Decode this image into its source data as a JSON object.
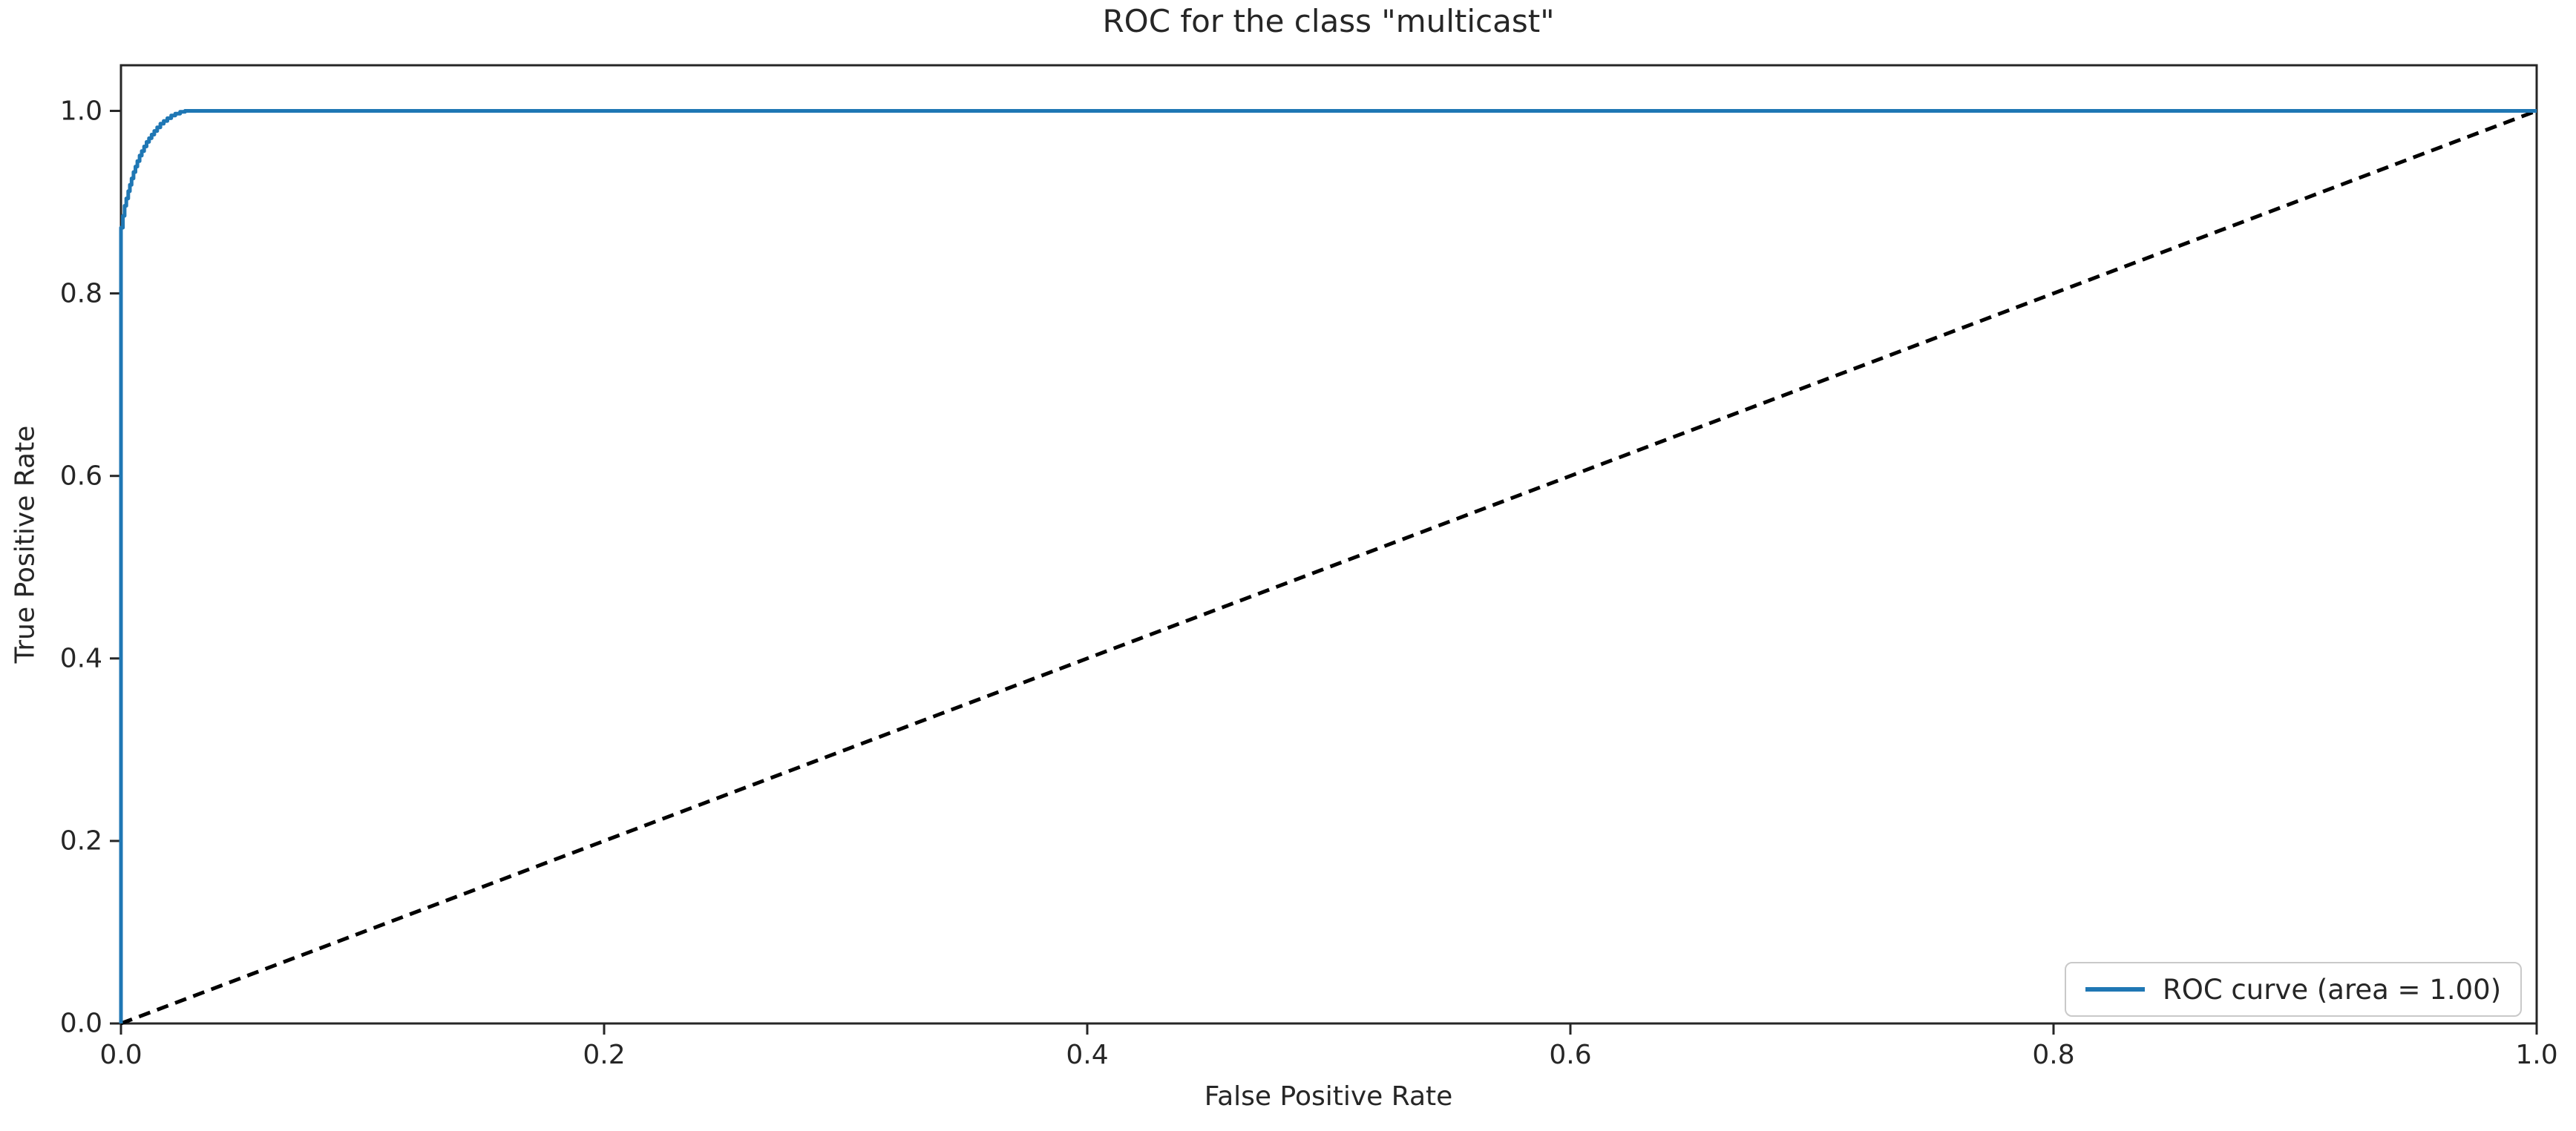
{
  "chart_data": {
    "type": "line",
    "title": "ROC for the class \"multicast\"",
    "xlabel": "False Positive Rate",
    "ylabel": "True Positive Rate",
    "xlim": [
      0.0,
      1.0
    ],
    "ylim": [
      0.0,
      1.05
    ],
    "xticks": [
      0.0,
      0.2,
      0.4,
      0.6,
      0.8,
      1.0
    ],
    "yticks": [
      0.0,
      0.2,
      0.4,
      0.6,
      0.8,
      1.0
    ],
    "grid": false,
    "legend_position": "lower right",
    "auc": "1.00",
    "colors": {
      "roc_curve": "#1f77b4",
      "chance_diagonal": "#000000",
      "spines": "#262626",
      "legend_border": "#c9c9c9",
      "text": "#262626"
    },
    "series": [
      {
        "name": "ROC curve (area = 1.00)",
        "color": "#1f77b4",
        "style": "solid",
        "step": true,
        "points": [
          [
            0.0,
            0.0
          ],
          [
            0.0,
            0.855
          ],
          [
            0.0008,
            0.872
          ],
          [
            0.0015,
            0.885
          ],
          [
            0.0022,
            0.896
          ],
          [
            0.003,
            0.904
          ],
          [
            0.0037,
            0.912
          ],
          [
            0.0044,
            0.919
          ],
          [
            0.0052,
            0.926
          ],
          [
            0.006,
            0.933
          ],
          [
            0.0068,
            0.939
          ],
          [
            0.0077,
            0.945
          ],
          [
            0.0086,
            0.951
          ],
          [
            0.0096,
            0.956
          ],
          [
            0.0106,
            0.961
          ],
          [
            0.0116,
            0.966
          ],
          [
            0.0127,
            0.97
          ],
          [
            0.0138,
            0.974
          ],
          [
            0.015,
            0.978
          ],
          [
            0.0163,
            0.982
          ],
          [
            0.0177,
            0.986
          ],
          [
            0.0192,
            0.989
          ],
          [
            0.0208,
            0.992
          ],
          [
            0.0225,
            0.995
          ],
          [
            0.0245,
            0.997
          ],
          [
            0.0265,
            0.999
          ],
          [
            0.0285,
            1.0
          ],
          [
            1.0,
            1.0
          ]
        ]
      },
      {
        "name": "chance-diagonal",
        "color": "#000000",
        "style": "dashed",
        "step": false,
        "points": [
          [
            0.0,
            0.0
          ],
          [
            1.0,
            1.0
          ]
        ]
      }
    ]
  }
}
